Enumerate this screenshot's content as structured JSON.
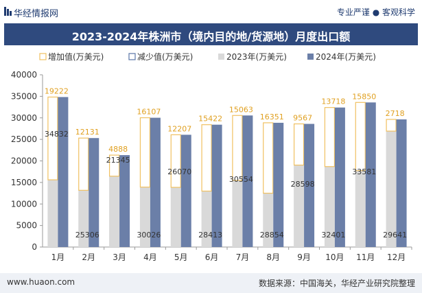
{
  "header": {
    "brand": "华经情报网",
    "tagline": "专业严谨 ● 客观科学"
  },
  "footer": {
    "site": "www.huaon.com",
    "source": "数据来源：中国海关，华经产业研究院整理"
  },
  "colors": {
    "increase": "#f0c060",
    "decrease": "#5a76a8",
    "y2023": "#d9d9d9",
    "y2024": "#6b7fa8",
    "title_bg": "#2f4a7e"
  },
  "chart_data": {
    "type": "bar",
    "title": "2023-2024年株洲市（境内目的地/货源地）月度出口额",
    "categories": [
      "1月",
      "2月",
      "3月",
      "4月",
      "5月",
      "6月",
      "7月",
      "8月",
      "9月",
      "10月",
      "11月",
      "12月"
    ],
    "series": [
      {
        "name": "2023年(万美元)",
        "values": [
          15610,
          13175,
          16457,
          13919,
          13863,
          12991,
          15491,
          12503,
          19031,
          18683,
          17731,
          26923
        ]
      },
      {
        "name": "2024年(万美元)",
        "values": [
          34832,
          25306,
          21345,
          30026,
          26070,
          28413,
          30554,
          28854,
          28598,
          32401,
          33581,
          29641
        ]
      }
    ],
    "change_series": [
      {
        "name": "增加值(万美元)",
        "values": [
          19222,
          12131,
          4888,
          16107,
          12207,
          15422,
          15063,
          16351,
          9567,
          13718,
          15850,
          2718
        ]
      },
      {
        "name": "减少值(万美元)",
        "values": [
          null,
          null,
          null,
          null,
          null,
          null,
          null,
          null,
          null,
          null,
          null,
          null
        ]
      }
    ],
    "y2024_labels": [
      "34832",
      "25306",
      "21345",
      "30026",
      "26070",
      "28413",
      "30554",
      "28854",
      "28598",
      "32401",
      "33581",
      "29641"
    ],
    "change_labels": [
      "19222",
      "12131",
      "4888",
      "16107",
      "12207",
      "15422",
      "15063",
      "16351",
      "9567",
      "13718",
      "15850",
      "2718"
    ],
    "ylim": [
      0,
      40000
    ],
    "yticks": [
      0,
      5000,
      10000,
      15000,
      20000,
      25000,
      30000,
      35000,
      40000
    ],
    "ytick_labels": [
      "0",
      "5000",
      "10000",
      "15000",
      "20000",
      "25000",
      "30000",
      "35000",
      "40000"
    ],
    "legend": {
      "position": "top",
      "items": [
        "增加值(万美元)",
        "减少值(万美元)",
        "2023年(万美元)",
        "2024年(万美元)"
      ]
    },
    "grid": false
  }
}
